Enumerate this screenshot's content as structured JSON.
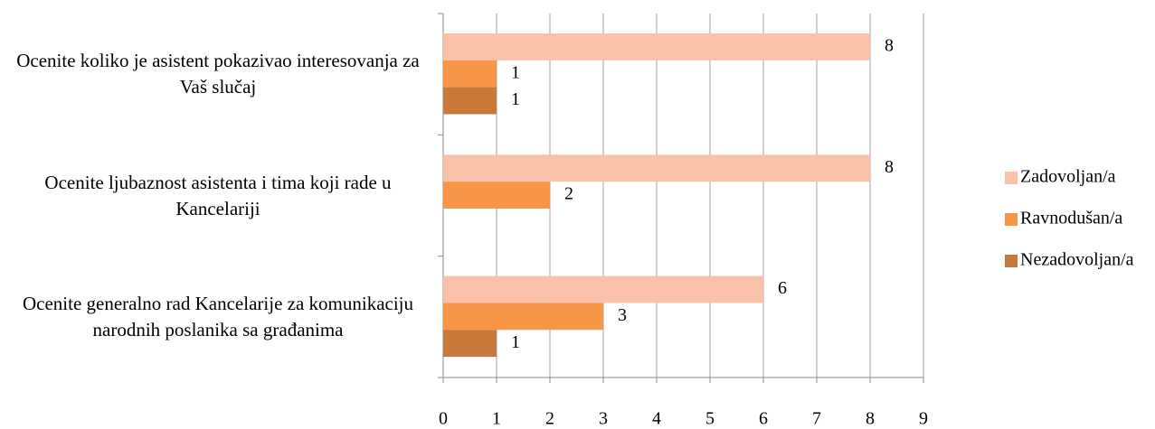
{
  "chart_data": {
    "type": "bar",
    "orientation": "horizontal",
    "categories": [
      "Ocenite koliko je asistent pokazivao interesovanja za Vaš slučaj",
      "Ocenite ljubaznost asistenta i tima koji rade u Kancelariji",
      "Ocenite generalno rad Kancelarije za komunikaciju narodnih poslanika sa građanima"
    ],
    "series": [
      {
        "name": "Zadovoljan/a",
        "color": "#f9c1a9",
        "values": [
          8,
          8,
          6
        ]
      },
      {
        "name": "Ravnodušan/a",
        "color": "#f79646",
        "values": [
          1,
          2,
          3
        ]
      },
      {
        "name": "Nezadovoljan/a",
        "color": "#c8783a",
        "values": [
          1,
          null,
          1
        ]
      }
    ],
    "xlim": [
      0,
      9
    ],
    "xticks": [
      0,
      1,
      2,
      3,
      4,
      5,
      6,
      7,
      8,
      9
    ],
    "grid": true,
    "legend": "right"
  }
}
